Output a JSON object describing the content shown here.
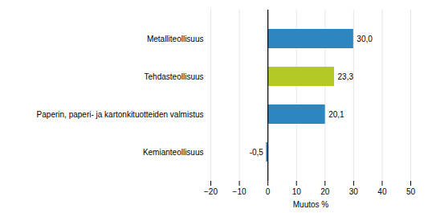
{
  "chart_data": {
    "type": "bar",
    "orientation": "horizontal",
    "xlabel": "Muutos %",
    "categories": [
      "Kemianteollisuus",
      "Paperin, paperi- ja kartonkituotteiden valmistus",
      "Tehdasteollisuus",
      "Metalliteollisuus"
    ],
    "values": [
      -0.5,
      20.1,
      23.3,
      30.0
    ],
    "value_labels": [
      "-0,5",
      "20,1",
      "23,3",
      "30,0"
    ],
    "colors": [
      "#2E86C1",
      "#2E86C1",
      "#B5C926",
      "#2E86C1"
    ],
    "xlim": [
      -20,
      50
    ],
    "xticks": [
      -20,
      -10,
      0,
      10,
      20,
      30,
      40,
      50
    ],
    "grid": true,
    "data_labels": true
  }
}
